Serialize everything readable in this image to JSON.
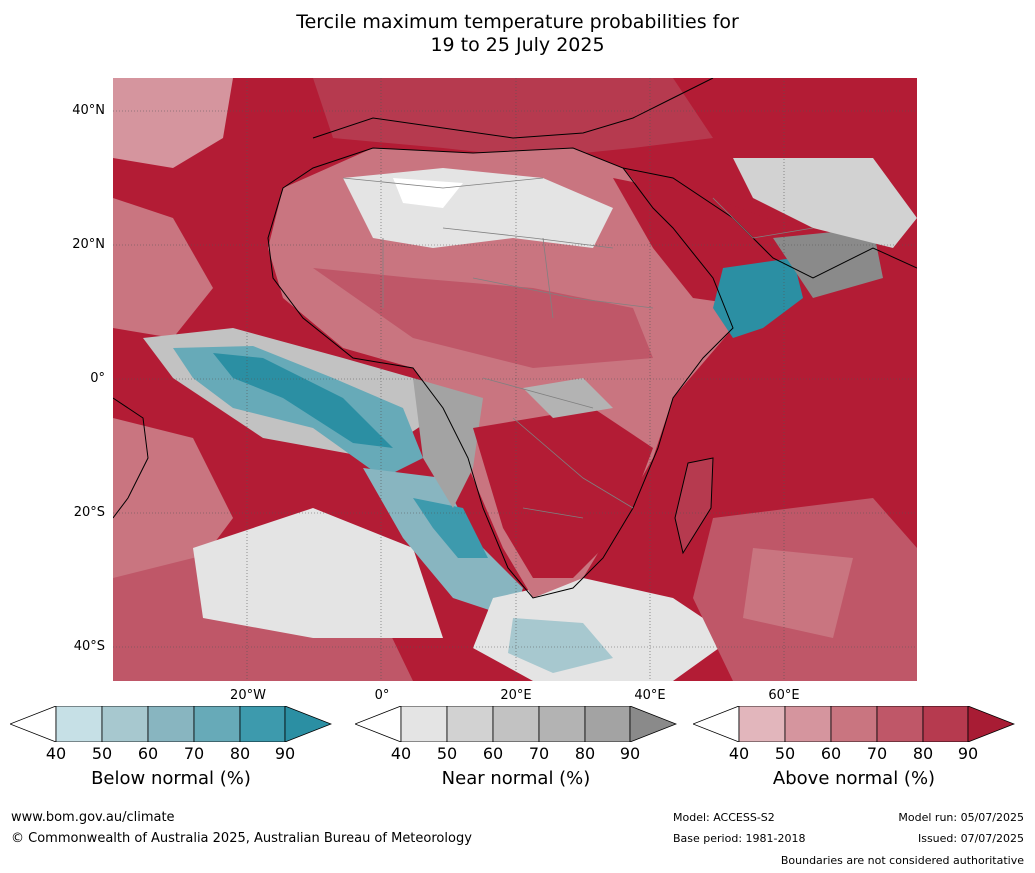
{
  "title": {
    "line1": "Tercile maximum temperature probabilities for",
    "line2": "19 to 25 July 2025"
  },
  "map": {
    "lat_labels": [
      "40°N",
      "20°N",
      "0°",
      "20°S",
      "40°S"
    ],
    "lon_labels": [
      "20°W",
      "0°",
      "20°E",
      "40°E",
      "60°E"
    ],
    "colors": {
      "ocean_above": "#b31c35",
      "land_line": "#000000",
      "border": "#808080"
    }
  },
  "legends": [
    {
      "label": "Below normal (%)",
      "ticks": [
        "40",
        "50",
        "60",
        "70",
        "80",
        "90"
      ],
      "colors": [
        "#ffffff",
        "#c6e0e6",
        "#a7c8cf",
        "#88b5c0",
        "#67aab8",
        "#3d9aad",
        "#2b8fa3"
      ]
    },
    {
      "label": "Near normal (%)",
      "ticks": [
        "40",
        "50",
        "60",
        "70",
        "80",
        "90"
      ],
      "colors": [
        "#ffffff",
        "#e4e4e4",
        "#d2d2d2",
        "#c2c2c2",
        "#b3b3b3",
        "#a3a3a3",
        "#8a8a8a"
      ]
    },
    {
      "label": "Above normal (%)",
      "ticks": [
        "40",
        "50",
        "60",
        "70",
        "80",
        "90"
      ],
      "colors": [
        "#ffffff",
        "#e2b6bc",
        "#d5959e",
        "#c97580",
        "#bf5768",
        "#b63a4f",
        "#a81c34"
      ]
    }
  ],
  "footer": {
    "website": "www.bom.gov.au/climate",
    "copyright": "© Commonwealth of Australia 2025, Australian Bureau of Meteorology",
    "model": "Model: ACCESS-S2",
    "base_period": "Base period: 1981-2018",
    "model_run": "Model run: 05/07/2025",
    "issued": "Issued: 07/07/2025",
    "disclaimer": "Boundaries are not considered authoritative"
  }
}
